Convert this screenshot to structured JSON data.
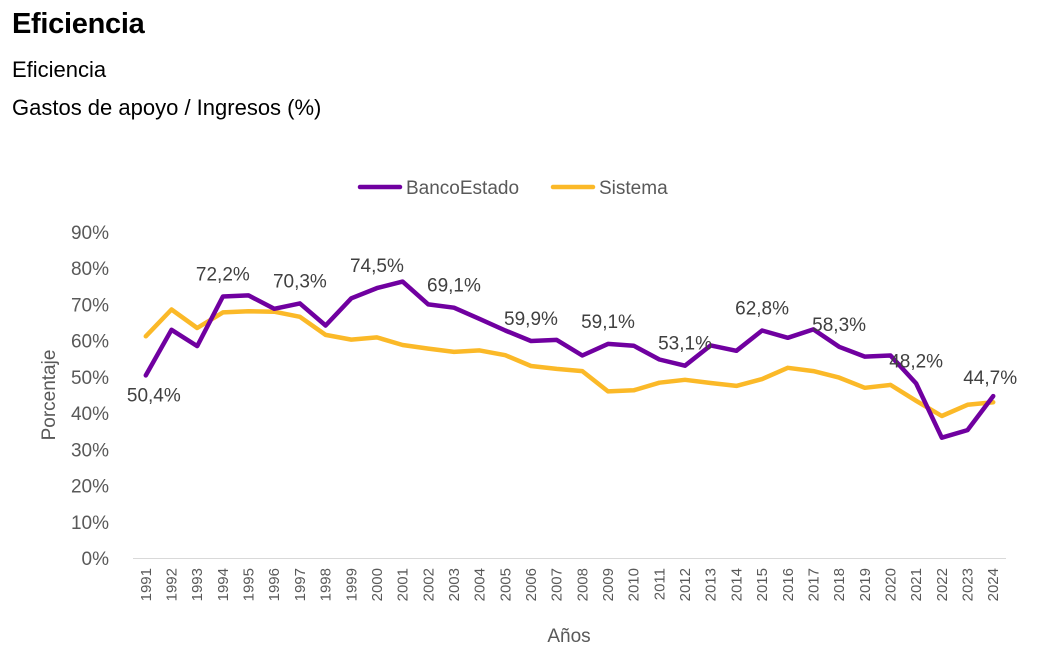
{
  "page": {
    "title": "Eficiencia",
    "subtitle1": "Eficiencia",
    "subtitle2": "Gastos de apoyo / Ingresos (%)"
  },
  "chart_data": {
    "type": "line",
    "xlabel": "Años",
    "ylabel": "Porcentaje",
    "ylim": [
      0,
      90
    ],
    "yticks": [
      0,
      10,
      20,
      30,
      40,
      50,
      60,
      70,
      80,
      90
    ],
    "ytick_labels": [
      "0%",
      "10%",
      "20%",
      "30%",
      "40%",
      "50%",
      "60%",
      "70%",
      "80%",
      "90%"
    ],
    "legend_position": "top-center",
    "categories": [
      "1991",
      "1992",
      "1993",
      "1994",
      "1995",
      "1996",
      "1997",
      "1998",
      "1999",
      "2000",
      "2001",
      "2002",
      "2003",
      "2004",
      "2005",
      "2006",
      "2007",
      "2008",
      "2009",
      "2010",
      "2011",
      "2012",
      "2013",
      "2014",
      "2015",
      "2016",
      "2017",
      "2018",
      "2019",
      "2020",
      "2021",
      "2022",
      "2023",
      "2024"
    ],
    "series": [
      {
        "name": "BancoEstado",
        "color": "#7000A0",
        "values": [
          50.4,
          63.0,
          58.5,
          72.2,
          72.5,
          68.8,
          70.3,
          64.2,
          71.7,
          74.5,
          76.3,
          70.0,
          69.1,
          66.0,
          62.8,
          59.9,
          60.2,
          55.9,
          59.1,
          58.6,
          54.8,
          53.1,
          58.7,
          57.2,
          62.8,
          60.8,
          63.1,
          58.3,
          55.6,
          55.9,
          48.2,
          33.2,
          35.3,
          44.7
        ]
      },
      {
        "name": "Sistema",
        "color": "#FBB928",
        "values": [
          61.2,
          68.6,
          63.5,
          67.8,
          68.1,
          68.0,
          66.6,
          61.6,
          60.3,
          60.9,
          58.8,
          57.8,
          56.9,
          57.3,
          56.0,
          53.0,
          52.2,
          51.6,
          46.0,
          46.3,
          48.4,
          49.2,
          48.3,
          47.5,
          49.4,
          52.5,
          51.6,
          49.8,
          47.0,
          47.8,
          43.4,
          39.2,
          42.3,
          43.0
        ]
      }
    ],
    "data_labels": [
      {
        "category": "1991",
        "text": "50,4%"
      },
      {
        "category": "1994",
        "text": "72,2%"
      },
      {
        "category": "1997",
        "text": "70,3%"
      },
      {
        "category": "2000",
        "text": "74,5%"
      },
      {
        "category": "2003",
        "text": "69,1%"
      },
      {
        "category": "2006",
        "text": "59,9%"
      },
      {
        "category": "2009",
        "text": "59,1%"
      },
      {
        "category": "2012",
        "text": "53,1%"
      },
      {
        "category": "2015",
        "text": "62,8%"
      },
      {
        "category": "2018",
        "text": "58,3%"
      },
      {
        "category": "2021",
        "text": "48,2%"
      },
      {
        "category": "2024",
        "text": "44,7%"
      }
    ]
  }
}
